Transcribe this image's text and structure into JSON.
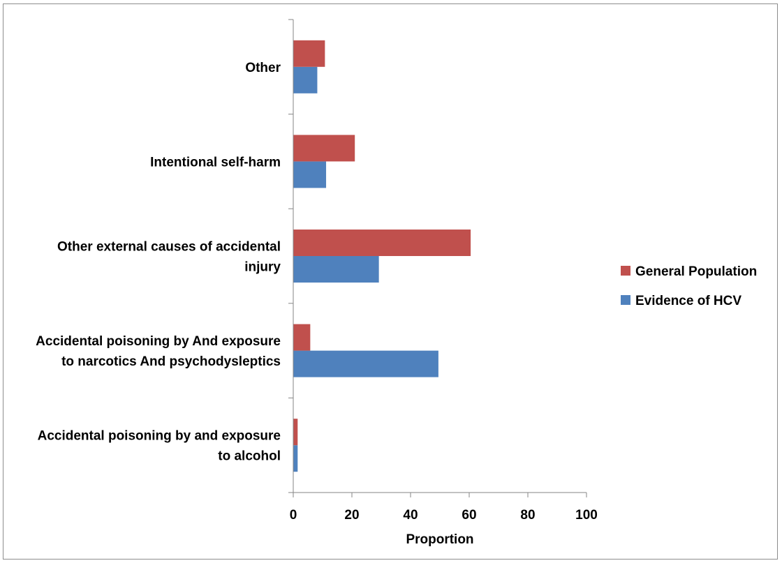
{
  "chart_data": {
    "type": "bar",
    "orientation": "horizontal",
    "categories": [
      [
        "Accidental poisoning by and exposure",
        "to alcohol"
      ],
      [
        "Accidental poisoning by And exposure",
        "to narcotics And psychodysleptics"
      ],
      [
        "Other external causes of accidental",
        "injury"
      ],
      [
        "Intentional self-harm"
      ],
      [
        "Other"
      ]
    ],
    "series": [
      {
        "name": "Evidence of HCV",
        "color": "#4F81BD",
        "values": [
          1.5,
          49.5,
          29.2,
          11.2,
          8.2
        ]
      },
      {
        "name": "General Population",
        "color": "#C0504D",
        "values": [
          1.5,
          5.8,
          60.5,
          21.0,
          10.8
        ]
      }
    ],
    "xlabel": "Proportion",
    "ylabel": "",
    "xlim": [
      0,
      100
    ],
    "xticks": [
      "0",
      "20",
      "40",
      "60",
      "80",
      "100"
    ],
    "grid": false,
    "legend_position": "right"
  }
}
